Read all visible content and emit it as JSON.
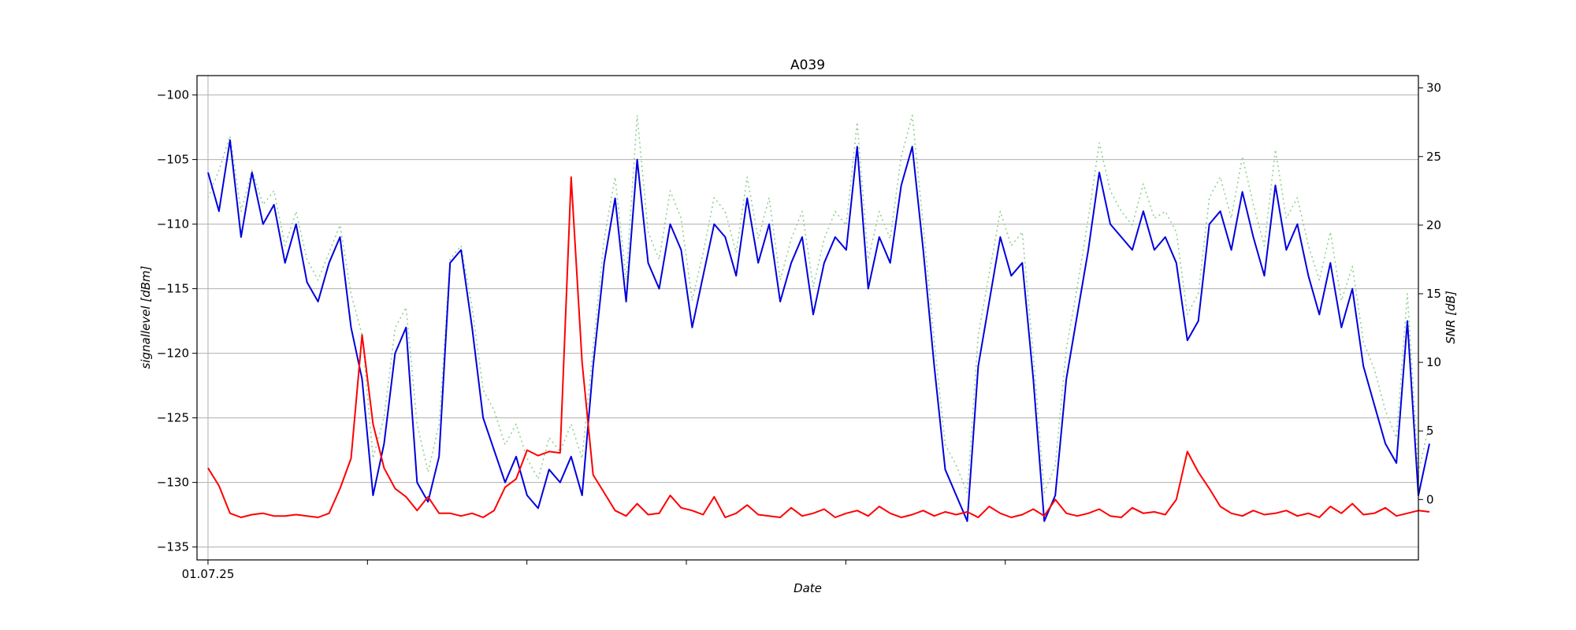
{
  "chart_data": {
    "type": "line",
    "title": "A039",
    "xlabel": "Date",
    "ylabel_left": "signallevel [dBm]",
    "ylabel_right": "SNR [dB]",
    "x_tick_labels": [
      "01.07.25"
    ],
    "y_left_range": [
      -136,
      -98.5
    ],
    "y_left_ticks": [
      -100,
      -105,
      -110,
      -115,
      -120,
      -125,
      -130,
      -135
    ],
    "y_left_tick_labels": [
      "−100",
      "−105",
      "−110",
      "−115",
      "−120",
      "−125",
      "−130",
      "−135"
    ],
    "y_right_range": [
      -4.4,
      30.9
    ],
    "y_right_ticks": [
      0,
      5,
      10,
      15,
      20,
      25,
      30
    ],
    "y_right_tick_labels": [
      "0",
      "5",
      "10",
      "15",
      "20",
      "25",
      "30"
    ],
    "x_index_range": [
      -1,
      110
    ],
    "grid": true,
    "colors": {
      "signal": "#0000dd",
      "snr": "#ff0000",
      "reference": "#90d090",
      "grid": "#b0b0b0"
    },
    "series": [
      {
        "key": "signal",
        "axis": "left",
        "values": [
          -106,
          -109,
          -103.5,
          -111,
          -106,
          -110,
          -108.5,
          -113,
          -110,
          -114.5,
          -116,
          -113,
          -111,
          -118,
          -122,
          -131,
          -127,
          -120,
          -118,
          -130,
          -131.5,
          -128,
          -113,
          -112,
          -118,
          -125,
          -127.5,
          -130,
          -128,
          -131,
          -132,
          -129,
          -130,
          -128,
          -131,
          -121,
          -113,
          -108,
          -116,
          -105,
          -113,
          -115,
          -110,
          -112,
          -118,
          -114,
          -110,
          -111,
          -114,
          -108,
          -113,
          -110,
          -116,
          -113,
          -111,
          -117,
          -113,
          -111,
          -112,
          -104,
          -115,
          -111,
          -113,
          -107,
          -104,
          -112,
          -121,
          -129,
          -131,
          -133,
          -121,
          -116,
          -111,
          -114,
          -113,
          -122,
          -133,
          -131,
          -122,
          -117,
          -112,
          -106,
          -110,
          -111,
          -112,
          -109,
          -112,
          -111,
          -113,
          -119,
          -117.5,
          -110,
          -109,
          -112,
          -107.5,
          -111,
          -114,
          -107,
          -112,
          -110,
          -114,
          -117,
          -113,
          -118,
          -115,
          -121,
          -124,
          -127,
          -128.5,
          -117.5,
          -131,
          -127
        ]
      },
      {
        "key": "snr",
        "axis": "right",
        "values": [
          2.3,
          1.0,
          -1.0,
          -1.3,
          -1.1,
          -1.0,
          -1.2,
          -1.2,
          -1.1,
          -1.2,
          -1.3,
          -1.0,
          0.8,
          3.0,
          12.0,
          5.5,
          2.3,
          0.8,
          0.2,
          -0.8,
          0.2,
          -1.0,
          -1.0,
          -1.2,
          -1.0,
          -1.3,
          -0.8,
          0.9,
          1.5,
          3.6,
          3.2,
          3.5,
          3.4,
          23.5,
          10.0,
          1.8,
          0.5,
          -0.8,
          -1.2,
          -0.3,
          -1.1,
          -1.0,
          0.3,
          -0.6,
          -0.8,
          -1.1,
          0.2,
          -1.3,
          -1.0,
          -0.4,
          -1.1,
          -1.2,
          -1.3,
          -0.6,
          -1.2,
          -1.0,
          -0.7,
          -1.3,
          -1.0,
          -0.8,
          -1.2,
          -0.5,
          -1.0,
          -1.3,
          -1.1,
          -0.8,
          -1.2,
          -0.9,
          -1.1,
          -0.9,
          -1.3,
          -0.5,
          -1.0,
          -1.3,
          -1.1,
          -0.7,
          -1.2,
          0.0,
          -1.0,
          -1.2,
          -1.0,
          -0.7,
          -1.2,
          -1.3,
          -0.6,
          -1.0,
          -0.9,
          -1.1,
          0.0,
          3.5,
          2.0,
          0.8,
          -0.5,
          -1.0,
          -1.2,
          -0.8,
          -1.1,
          -1.0,
          -0.8,
          -1.2,
          -1.0,
          -1.3,
          -0.5,
          -1.0,
          -0.3,
          -1.1,
          -1.0,
          -0.6,
          -1.2,
          -1.0,
          -0.8,
          -0.9
        ]
      },
      {
        "key": "reference",
        "axis": "right",
        "values": [
          22.0,
          24.0,
          26.5,
          21.0,
          24.0,
          21.5,
          22.5,
          18.5,
          21.0,
          17.5,
          16.0,
          18.0,
          20.0,
          15.0,
          12.0,
          3.0,
          6.0,
          12.5,
          14.0,
          5.5,
          2.0,
          5.5,
          17.5,
          18.5,
          14.0,
          8.0,
          6.5,
          4.0,
          5.5,
          3.0,
          1.5,
          4.5,
          3.5,
          5.5,
          3.0,
          11.0,
          19.0,
          23.5,
          16.0,
          28.0,
          19.5,
          17.5,
          22.5,
          20.5,
          14.5,
          18.0,
          22.0,
          21.0,
          18.0,
          23.5,
          19.0,
          22.0,
          16.0,
          19.0,
          21.0,
          15.5,
          19.0,
          21.0,
          20.0,
          27.5,
          17.5,
          21.0,
          19.0,
          25.0,
          28.0,
          20.0,
          11.5,
          4.0,
          2.5,
          0.5,
          12.0,
          16.5,
          21.0,
          18.5,
          19.5,
          10.5,
          0.5,
          2.5,
          11.0,
          15.5,
          20.5,
          26.0,
          22.5,
          21.0,
          20.0,
          23.0,
          20.5,
          21.0,
          19.5,
          13.5,
          15.0,
          22.0,
          23.5,
          20.5,
          25.0,
          21.5,
          18.5,
          25.5,
          20.5,
          22.0,
          18.5,
          16.0,
          19.5,
          14.5,
          17.0,
          11.5,
          9.5,
          6.5,
          4.5,
          15.0,
          2.0,
          5.5
        ]
      }
    ]
  }
}
